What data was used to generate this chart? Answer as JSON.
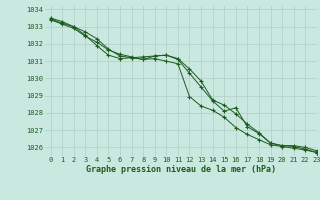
{
  "title": "Graphe pression niveau de la mer (hPa)",
  "bg_color": "#c8e8e0",
  "grid_color": "#b0ccc8",
  "line_color": "#1e5c1e",
  "xlim": [
    -0.5,
    23
  ],
  "ylim": [
    1025.5,
    1034.2
  ],
  "yticks": [
    1026,
    1027,
    1028,
    1029,
    1030,
    1031,
    1032,
    1033,
    1034
  ],
  "xticks": [
    0,
    1,
    2,
    3,
    4,
    5,
    6,
    7,
    8,
    9,
    10,
    11,
    12,
    13,
    14,
    15,
    16,
    17,
    18,
    19,
    20,
    21,
    22,
    23
  ],
  "series1": [
    1033.5,
    1033.3,
    1033.0,
    1032.7,
    1032.3,
    1031.7,
    1031.3,
    1031.2,
    1031.1,
    1031.3,
    1031.35,
    1031.1,
    1030.3,
    1029.5,
    1028.7,
    1028.1,
    1028.3,
    1027.2,
    1026.8,
    1026.25,
    1026.1,
    1026.1,
    1026.0,
    1025.8
  ],
  "series2": [
    1033.4,
    1033.15,
    1032.9,
    1032.45,
    1032.1,
    1031.65,
    1031.4,
    1031.25,
    1031.1,
    1031.15,
    1031.0,
    1030.85,
    1028.95,
    1028.4,
    1028.15,
    1027.75,
    1027.15,
    1026.75,
    1026.45,
    1026.15,
    1026.05,
    1025.95,
    1025.85,
    1025.7
  ],
  "series3": [
    1033.45,
    1033.2,
    1033.0,
    1032.5,
    1031.9,
    1031.35,
    1031.15,
    1031.2,
    1031.25,
    1031.3,
    1031.35,
    1031.15,
    1030.55,
    1029.85,
    1028.75,
    1028.45,
    1027.95,
    1027.35,
    1026.85,
    1026.25,
    1026.1,
    1026.05,
    1025.9,
    1025.7
  ]
}
